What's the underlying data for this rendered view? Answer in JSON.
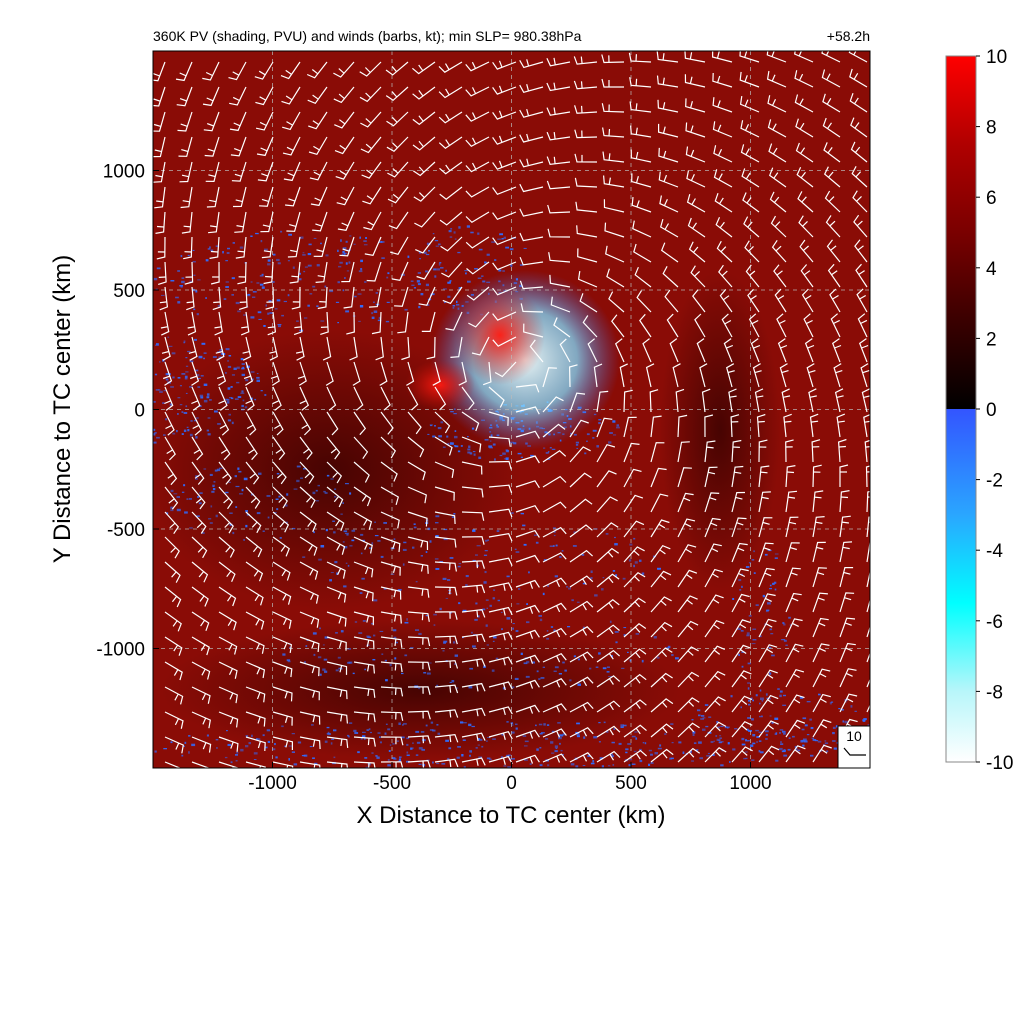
{
  "chart_data": {
    "type": "heatmap",
    "title": "360K PV (shading, PVU) and winds (barbs, kt); min SLP= 980.38hPa",
    "time_label": "+58.2h",
    "xlabel": "X Distance to TC center (km)",
    "ylabel": "Y Distance to TC center (km)",
    "xlim": [
      -1500,
      1500
    ],
    "ylim": [
      -1500,
      1500
    ],
    "x_ticks": [
      -1000,
      -500,
      0,
      500,
      1000
    ],
    "x_tick_labels": [
      "-1000",
      "-500",
      "0",
      "500",
      "1000"
    ],
    "y_ticks": [
      -1000,
      -500,
      0,
      500,
      1000
    ],
    "y_tick_labels": [
      "-1000",
      "-500",
      "0",
      "500",
      "1000"
    ],
    "grid": true,
    "colorbar": {
      "range": [
        -10,
        10
      ],
      "ticks": [
        -10,
        -8,
        -6,
        -4,
        -2,
        0,
        2,
        4,
        6,
        8,
        10
      ],
      "tick_labels": [
        "-10",
        "-8",
        "-6",
        "-4",
        "-2",
        "0",
        "2",
        "4",
        "6",
        "8",
        "10"
      ],
      "colors_negative": [
        "#ffffff",
        "#b8f6fa",
        "#00ffff",
        "#2aa6ff",
        "#3355ff"
      ],
      "colors_positive": [
        "#000000",
        "#3a0000",
        "#7a0000",
        "#b00000",
        "#ff0000"
      ]
    },
    "barb_reference_label": "10",
    "colors": {
      "field_background": "#8a0c06",
      "positive_core": "#ff1a10",
      "negative_speckle": "#2f6cff",
      "negative_core": "#e8ffff",
      "barbs": "#ffffff",
      "grid": "#bbbbbb"
    }
  }
}
